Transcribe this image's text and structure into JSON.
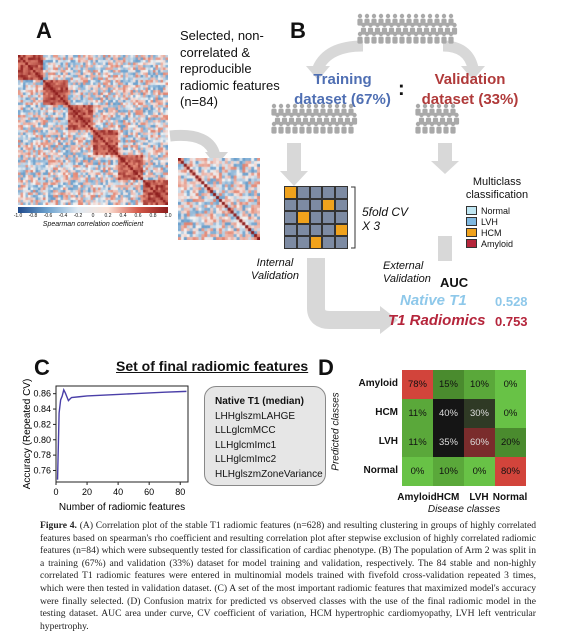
{
  "panels": {
    "a": "A",
    "b": "B",
    "c": "C",
    "d": "D"
  },
  "panel_a": {
    "selected_label": "Selected, non-correlated & reproducible radiomic features (n=84)",
    "colorbar_ticks": [
      "-1.0",
      "-0.8",
      "-0.6",
      "-0.4",
      "-0.2",
      "0",
      "0.2",
      "0.4",
      "0.6",
      "0.8",
      "1.0"
    ],
    "colorbar_title": "Spearman correlation coefficient"
  },
  "panel_b": {
    "training": "Training dataset (67%)",
    "separator": ":",
    "validation": "Validation dataset (33%)",
    "cv_label": "5fold CV X 3",
    "internal": "Internal Validation",
    "external": "External Validation",
    "multiclass": "Multiclass classification",
    "legend": [
      {
        "label": "Normal",
        "color": "#bfe6f2"
      },
      {
        "label": "LVH",
        "color": "#7fb8e0"
      },
      {
        "label": "HCM",
        "color": "#f0a21c"
      },
      {
        "label": "Amyloid",
        "color": "#b5253b"
      }
    ],
    "auc_title": "AUC",
    "native_label": "Native T1",
    "native_value": "0.528",
    "radiomics_label": "T1 Radiomics",
    "radiomics_value": "0.753",
    "colors": {
      "training": "#4f6fb3",
      "validation": "#b03a3a",
      "native": "#8ec8ea",
      "radiomics": "#b5253b"
    }
  },
  "panel_c": {
    "title": "Set of final radiomic features",
    "features_header": "Native T1 (median)",
    "features": [
      "LHHglszmLAHGE",
      "LLLglcmMCC",
      "LLHglcmImc1",
      "LLHglcmImc2",
      "HLHglszmZoneVariance"
    ]
  },
  "chart_data": {
    "type": "line",
    "xlabel": "Number of radiomic features",
    "ylabel": "Accuracy (Repeated CV)",
    "xlim": [
      0,
      85
    ],
    "ylim": [
      0.745,
      0.87
    ],
    "xticks": [
      "0",
      "20",
      "40",
      "60",
      "80"
    ],
    "yticks": [
      "0.76",
      "0.78",
      "0.80",
      "0.82",
      "0.84",
      "0.86"
    ],
    "x": [
      1,
      2,
      3,
      4,
      5,
      6,
      7,
      8,
      9,
      10,
      15,
      20,
      30,
      40,
      50,
      60,
      70,
      84
    ],
    "y": [
      0.748,
      0.835,
      0.852,
      0.857,
      0.865,
      0.861,
      0.856,
      0.851,
      0.853,
      0.855,
      0.856,
      0.857,
      0.858,
      0.859,
      0.86,
      0.861,
      0.862,
      0.863
    ],
    "line_color": "#4a3fa8"
  },
  "confusion_matrix": {
    "row_axis": "Predicted classes",
    "col_axis": "Disease classes",
    "rows": [
      "Amyloid",
      "HCM",
      "LVH",
      "Normal"
    ],
    "cols": [
      "Amyloid",
      "HCM",
      "LVH",
      "Normal"
    ],
    "values": [
      [
        "78%",
        "15%",
        "10%",
        "0%"
      ],
      [
        "11%",
        "40%",
        "30%",
        "0%"
      ],
      [
        "11%",
        "35%",
        "60%",
        "20%"
      ],
      [
        "0%",
        "10%",
        "0%",
        "80%"
      ]
    ],
    "fractions": [
      [
        0.78,
        0.15,
        0.1,
        0.0
      ],
      [
        0.11,
        0.4,
        0.3,
        0.0
      ],
      [
        0.11,
        0.35,
        0.6,
        0.2
      ],
      [
        0.0,
        0.1,
        0.0,
        0.8
      ]
    ]
  },
  "caption": {
    "label": "Figure 4.",
    "text": "(A) Correlation plot of the stable T1 radiomic features (n=628) and resulting clustering in groups of highly correlated features based on spearman's rho coefficient and resulting correlation plot after stepwise exclusion of highly correlated radiomic features (n=84) which were subsequently tested for classification of cardiac phenotype. (B) The population of Arm 2 was split in a training (67%) and validation (33%) dataset for model training and validation, respectively. The 84 stable and non-highly correlated T1 radiomic features were entered in multinomial models trained with fivefold cross-validation repeated 3 times, which were then tested in validation dataset. (C) A set of the most important radiomic features that maximized model's accuracy were finally selected. (D) Confusion matrix for predicted vs observed classes with the use of the final radiomic model in the testing dataset. AUC area under curve, CV coefficient of variation, HCM hypertrophic cardiomyopathy, LVH left ventricular hypertrophy."
  }
}
